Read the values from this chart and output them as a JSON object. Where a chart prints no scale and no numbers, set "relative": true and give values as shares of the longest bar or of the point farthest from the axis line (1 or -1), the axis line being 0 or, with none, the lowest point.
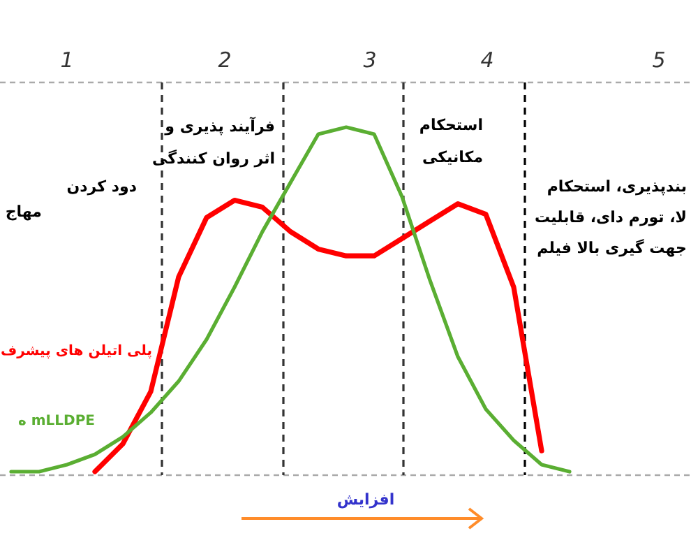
{
  "chart_data": {
    "type": "line",
    "relative": true,
    "categories": [
      null,
      null,
      null,
      null,
      null,
      null,
      null,
      null,
      null,
      null,
      null,
      null,
      null,
      null,
      null,
      null,
      null,
      null,
      null,
      null,
      null,
      null,
      null,
      null,
      null
    ],
    "series": [
      {
        "name": "پلی اتیلن های پیشرف",
        "color": "#ff0000",
        "values": [
          null,
          null,
          null,
          0.01,
          0.09,
          0.24,
          0.57,
          0.74,
          0.79,
          0.77,
          0.7,
          0.65,
          0.63,
          0.63,
          0.68,
          0.73,
          0.78,
          0.75,
          0.54,
          0.07,
          null,
          null,
          null,
          null,
          null
        ]
      },
      {
        "name": "mLLDPE ه",
        "color": "#5aae32",
        "values": [
          0.01,
          0.01,
          0.03,
          0.06,
          0.11,
          0.18,
          0.27,
          0.39,
          0.54,
          0.7,
          0.84,
          0.98,
          1,
          0.98,
          0.8,
          0.56,
          0.34,
          0.19,
          0.1,
          0.03,
          0.01,
          null,
          null,
          null,
          null
        ]
      }
    ],
    "annotations": [
      "1",
      "2",
      "3",
      "4",
      "5",
      "مهاج",
      "دود کردن",
      "فرآیند پذیری و\nاثر روان کنندگی",
      "استحکام\nمکانیکی",
      "بندپذیری، استحکام\nلا، تورم دای، قابلیت\nجهت گیری بالا فیلم",
      "افزایش"
    ]
  }
}
